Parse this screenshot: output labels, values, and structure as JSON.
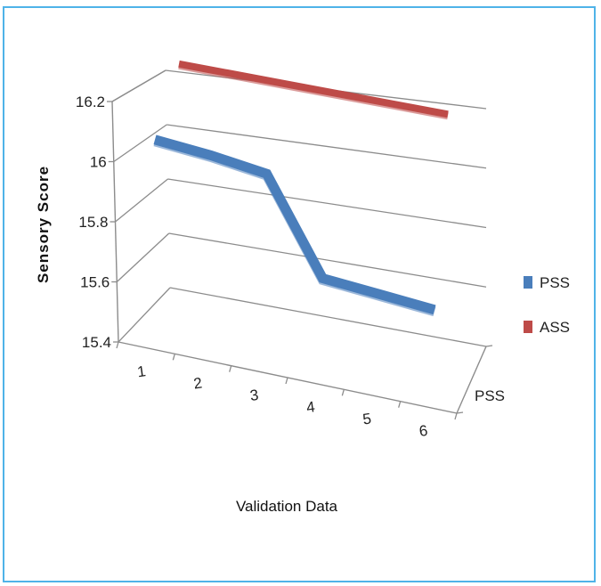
{
  "chart_data": {
    "type": "line",
    "style": "3d",
    "categories": [
      "1",
      "2",
      "3",
      "4",
      "5",
      "6"
    ],
    "series": [
      {
        "name": "PSS",
        "values": [
          16.07,
          16.04,
          16.0,
          15.66,
          15.63,
          15.6
        ],
        "color": "#4a7ebb"
      },
      {
        "name": "ASS",
        "values": [
          16.24,
          16.23,
          16.22,
          16.21,
          16.2,
          16.19
        ],
        "color": "#be4b48"
      }
    ],
    "ylabel": "Sensory  Score",
    "xlabel": "Validation Data",
    "depth_label": "PSS",
    "ylim": [
      15.4,
      16.2
    ],
    "yticks": [
      "15.4",
      "15.6",
      "15.8",
      "16",
      "16.2"
    ],
    "grid": true,
    "legend_position": "right"
  }
}
